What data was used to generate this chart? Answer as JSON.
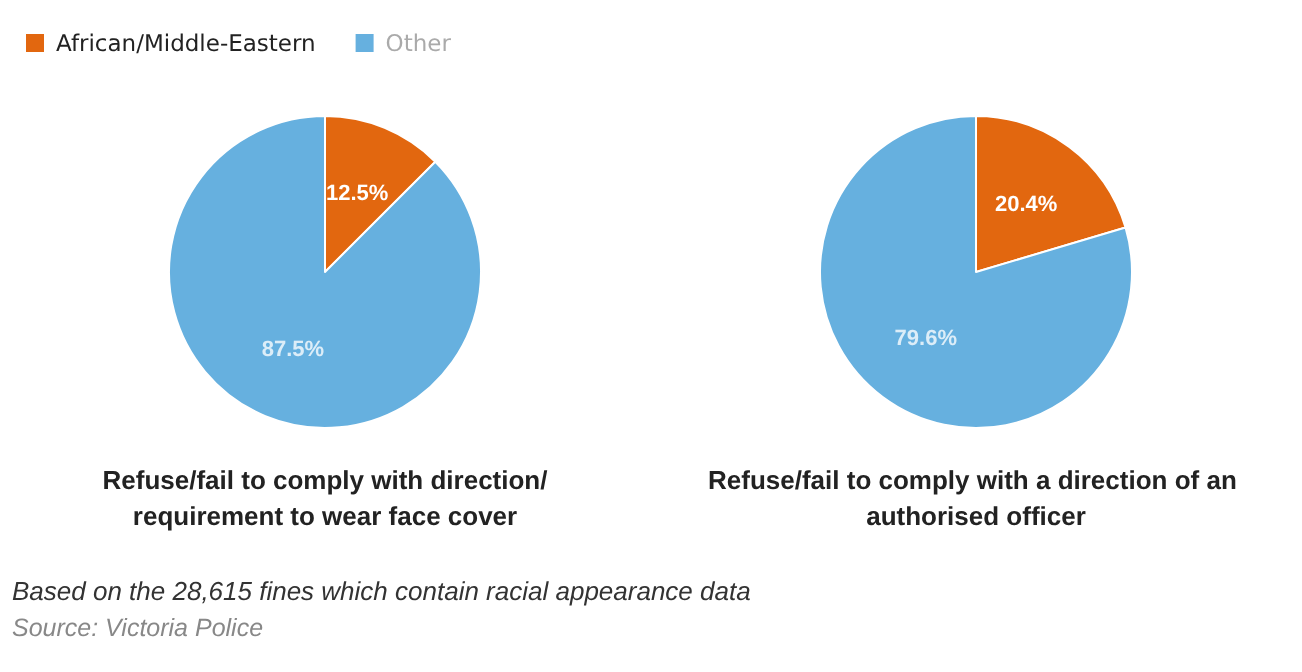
{
  "chart_data": [
    {
      "type": "pie",
      "title": "Refuse/fail to comply with direction/requirement to wear face cover",
      "categories": [
        "African/Middle-Eastern",
        "Other"
      ],
      "values": [
        12.5,
        87.5
      ],
      "colors": [
        "#e2670f",
        "#66b0df"
      ],
      "value_labels": [
        "12.5%",
        "87.5%"
      ],
      "legend": "top left",
      "annotations": [
        "Based on the 28,615 fines which contain racial appearance data",
        "Source: Victoria Police"
      ]
    },
    {
      "type": "pie",
      "title": "Refuse/fail to comply with a direction of an authorised officer",
      "categories": [
        null,
        null
      ],
      "values": [
        20.4,
        79.6
      ],
      "colors": [
        "#e2670f",
        "#66b0df"
      ],
      "value_labels": [
        "20.4%",
        "79.6%"
      ],
      "legend": false
    }
  ]
}
